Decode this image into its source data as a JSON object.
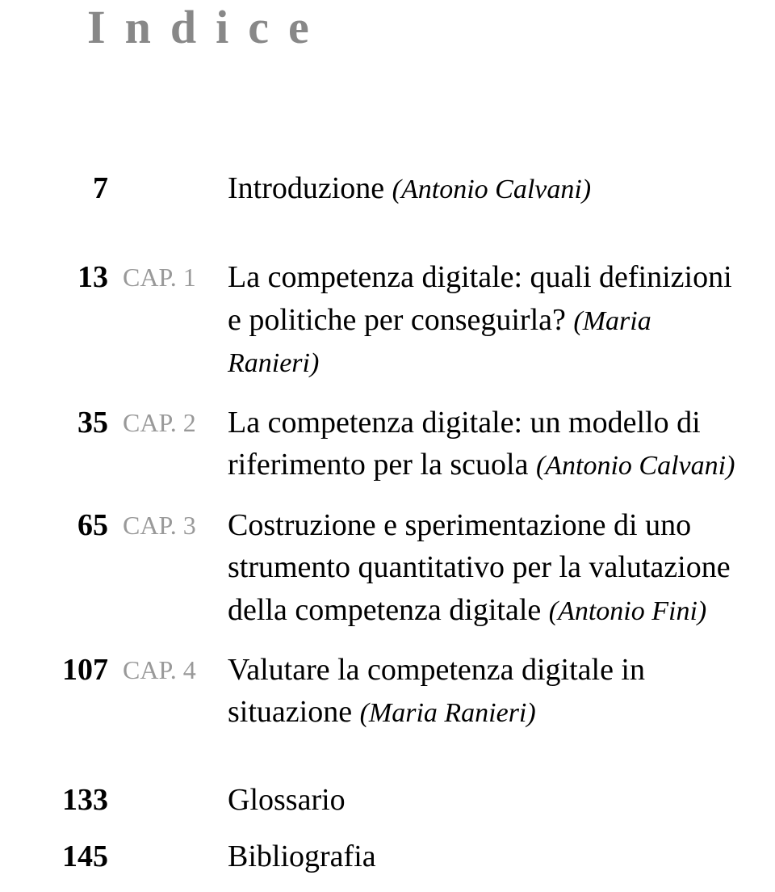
{
  "title": "Indice",
  "intro": {
    "page": "7",
    "title": "Introduzione",
    "author": "(Antonio Calvani)"
  },
  "chapters": [
    {
      "page": "13",
      "label": "CAP. 1",
      "title": "La competenza digitale: quali definizioni e politiche per conseguirla?",
      "author": "(Maria Ranieri)"
    },
    {
      "page": "35",
      "label": "CAP. 2",
      "title": "La competenza digitale: un modello di riferimento per la scuola",
      "author": "(Antonio Calvani)"
    },
    {
      "page": "65",
      "label": "CAP. 3",
      "title": "Costruzione e sperimentazione di uno strumento quantitativo per la valutazione della competenza digitale",
      "author": "(Antonio Fini)"
    },
    {
      "page": "107",
      "label": "CAP. 4",
      "title": "Valutare la competenza digitale in situazione",
      "author": "(Maria Ranieri)"
    }
  ],
  "backmatter": [
    {
      "page": "133",
      "title": "Glossario"
    },
    {
      "page": "145",
      "title": "Bibliografia"
    }
  ],
  "colors": {
    "title_color": "#888888",
    "chapter_label_color": "#999999",
    "text_color": "#000000",
    "background": "#ffffff"
  },
  "typography": {
    "title_fontsize": 58,
    "title_letter_spacing": 24,
    "page_num_fontsize": 38,
    "chapter_label_fontsize": 32,
    "entry_fontsize": 38,
    "author_fontsize": 34,
    "font_family": "Georgia serif"
  }
}
